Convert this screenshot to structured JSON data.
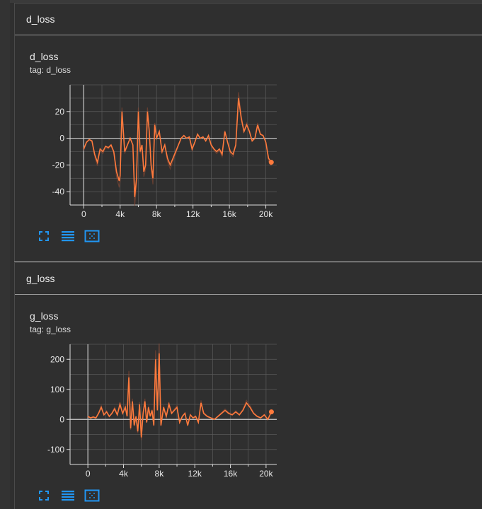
{
  "sections": [
    {
      "header": "d_loss",
      "card_title": "d_loss",
      "tag": "tag: d_loss"
    },
    {
      "header": "g_loss",
      "card_title": "g_loss",
      "tag": "tag: g_loss"
    }
  ],
  "toolbar_icons": [
    "fullscreen-icon",
    "data-list-icon",
    "fit-domain-icon"
  ],
  "colors": {
    "line": "#ff7a3d",
    "line_raw": "#8a4a33",
    "grid": "#5a5a5a",
    "accent": "#2196f3"
  },
  "chart_data": [
    {
      "type": "line",
      "title": "d_loss",
      "xlim": [
        -1500,
        21200
      ],
      "ylim": [
        -50,
        40
      ],
      "x_ticks": [
        0,
        4000,
        8000,
        12000,
        16000,
        20000
      ],
      "x_tick_labels": [
        "0",
        "4k",
        "8k",
        "12k",
        "16k",
        "20k"
      ],
      "y_ticks": [
        -40,
        -20,
        0,
        20
      ],
      "y_tick_labels": [
        "-40",
        "-20",
        "0",
        "20"
      ],
      "grid": true,
      "series": [
        {
          "x": [
            0,
            300,
            600,
            900,
            1200,
            1500,
            1800,
            2100,
            2400,
            2700,
            3000,
            3300,
            3600,
            3900,
            4000,
            4200,
            4500,
            4800,
            5100,
            5400,
            5600,
            5800,
            6000,
            6200,
            6400,
            6600,
            6800,
            7000,
            7200,
            7400,
            7600,
            7800,
            8000,
            8300,
            8600,
            8900,
            9200,
            9500,
            9800,
            10100,
            10400,
            10700,
            11000,
            11300,
            11600,
            11900,
            12200,
            12500,
            12800,
            13100,
            13400,
            13700,
            14000,
            14300,
            14600,
            14900,
            15200,
            15500,
            15800,
            16100,
            16400,
            16700,
            17000,
            17300,
            17600,
            17900,
            18200,
            18500,
            18800,
            19100,
            19400,
            19700,
            20000,
            20300,
            20600
          ],
          "y": [
            -8,
            -3,
            -1,
            -2,
            -12,
            -18,
            -8,
            -10,
            -6,
            -7,
            -5,
            -10,
            -25,
            -32,
            -28,
            20,
            -10,
            -5,
            0,
            -5,
            -44,
            -30,
            20,
            -10,
            -5,
            -25,
            -20,
            20,
            5,
            -20,
            -30,
            10,
            0,
            5,
            -10,
            -5,
            -15,
            -20,
            -15,
            -10,
            -5,
            0,
            2,
            0,
            1,
            -8,
            -3,
            3,
            0,
            1,
            -2,
            2,
            -5,
            -8,
            -10,
            -8,
            -12,
            5,
            -3,
            -10,
            -12,
            -5,
            30,
            15,
            5,
            10,
            5,
            -2,
            0,
            10,
            3,
            2,
            -3,
            -15,
            -18
          ]
        }
      ]
    },
    {
      "type": "line",
      "title": "g_loss",
      "xlim": [
        -2000,
        21200
      ],
      "ylim": [
        -150,
        250
      ],
      "x_ticks": [
        0,
        4000,
        8000,
        12000,
        16000,
        20000
      ],
      "x_tick_labels": [
        "0",
        "4k",
        "8k",
        "12k",
        "16k",
        "20k"
      ],
      "y_ticks": [
        -100,
        0,
        100,
        200
      ],
      "y_tick_labels": [
        "-100",
        "0",
        "100",
        "200"
      ],
      "grid": true,
      "series": [
        {
          "x": [
            0,
            300,
            600,
            900,
            1200,
            1500,
            1800,
            2100,
            2400,
            2700,
            3000,
            3300,
            3600,
            3900,
            4200,
            4400,
            4600,
            4800,
            5000,
            5200,
            5400,
            5600,
            5800,
            6000,
            6200,
            6400,
            6600,
            6800,
            7000,
            7200,
            7400,
            7600,
            7800,
            8000,
            8200,
            8500,
            8800,
            9100,
            9400,
            9700,
            10000,
            10300,
            10600,
            10900,
            11200,
            11500,
            11800,
            12100,
            12400,
            12700,
            13000,
            13400,
            13800,
            14200,
            14600,
            15000,
            15400,
            15800,
            16200,
            16600,
            17000,
            17400,
            17800,
            18200,
            18600,
            19000,
            19400,
            19800,
            20200,
            20600
          ],
          "y": [
            10,
            5,
            8,
            5,
            20,
            40,
            15,
            25,
            10,
            20,
            35,
            15,
            50,
            20,
            40,
            10,
            140,
            -30,
            60,
            -20,
            10,
            -40,
            50,
            -60,
            20,
            60,
            -10,
            40,
            10,
            30,
            -20,
            200,
            30,
            220,
            -20,
            40,
            10,
            50,
            20,
            30,
            40,
            -10,
            10,
            20,
            -20,
            15,
            5,
            10,
            -10,
            55,
            20,
            10,
            5,
            0,
            10,
            20,
            30,
            20,
            15,
            25,
            15,
            30,
            55,
            40,
            20,
            10,
            5,
            15,
            0,
            25
          ]
        }
      ]
    }
  ]
}
